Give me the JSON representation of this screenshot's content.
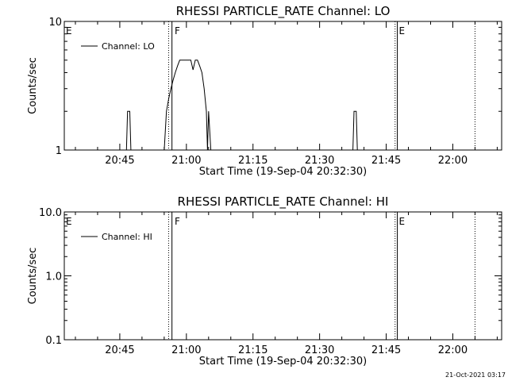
{
  "footer": {
    "timestamp": "21-Oct-2021 03:17"
  },
  "chart_data": [
    {
      "type": "line",
      "title": "RHESSI PARTICLE_RATE Channel: LO",
      "xlabel": "Start Time (19-Sep-04 20:32:30)",
      "ylabel": "Counts/sec",
      "yscale": "log",
      "ylim": [
        1,
        10
      ],
      "ytick_values": [
        1,
        10
      ],
      "ytick_labels": [
        "1",
        "10"
      ],
      "xlim": [
        "20:32:30",
        "22:11:00"
      ],
      "xtick_values": [
        "20:45",
        "21:00",
        "21:15",
        "21:30",
        "21:45",
        "22:00"
      ],
      "xtick_labels": [
        "20:45",
        "21:00",
        "21:15",
        "21:30",
        "21:45",
        "22:00"
      ],
      "legend": {
        "position": "top-left",
        "entries": [
          "Channel: LO"
        ]
      },
      "grid": false,
      "series": [
        {
          "name": "Channel: LO",
          "x": [
            "20:46:00",
            "20:46:30",
            "20:46:45",
            "20:47:15",
            "20:47:30",
            "20:48:00",
            "20:55:00",
            "20:55:30",
            "20:56:00",
            "20:56:30",
            "20:57:00",
            "20:57:30",
            "20:58:00",
            "20:58:30",
            "20:59:00",
            "20:59:30",
            "21:00:00",
            "21:00:30",
            "21:01:00",
            "21:01:30",
            "21:02:00",
            "21:02:30",
            "21:03:00",
            "21:03:30",
            "21:04:00",
            "21:04:30",
            "21:04:45",
            "21:05:00",
            "21:05:30",
            "21:06:00",
            "21:06:30",
            "21:07:00",
            "21:37:00",
            "21:37:30",
            "21:37:45",
            "21:38:15",
            "21:38:30",
            "21:39:00"
          ],
          "y": [
            1,
            1,
            2,
            2,
            1,
            1,
            1,
            2,
            2.5,
            3,
            3.5,
            4,
            4.5,
            5,
            5,
            5,
            5,
            5,
            5,
            4.2,
            5,
            5,
            4.5,
            4,
            3,
            2,
            1,
            2,
            1,
            1,
            1,
            1,
            1,
            1,
            2,
            2,
            1,
            1
          ]
        }
      ],
      "annotations": [
        {
          "text": "E",
          "x": "20:32:30"
        },
        {
          "text": "F",
          "x": "20:57:00"
        },
        {
          "text": "E",
          "x": "21:47:30"
        }
      ],
      "vertical_lines": {
        "dotted": [
          "20:56:00",
          "21:47:00",
          "22:05:00"
        ],
        "solid": [
          "20:56:45",
          "21:47:30"
        ]
      }
    },
    {
      "type": "line",
      "title": "RHESSI PARTICLE_RATE Channel: HI",
      "xlabel": "Start Time (19-Sep-04 20:32:30)",
      "ylabel": "Counts/sec",
      "yscale": "log",
      "ylim": [
        0.1,
        10
      ],
      "ytick_values": [
        0.1,
        1,
        10
      ],
      "ytick_labels": [
        "0.1",
        "1.0",
        "10.0"
      ],
      "xlim": [
        "20:32:30",
        "22:11:00"
      ],
      "xtick_values": [
        "20:45",
        "21:00",
        "21:15",
        "21:30",
        "21:45",
        "22:00"
      ],
      "xtick_labels": [
        "20:45",
        "21:00",
        "21:15",
        "21:30",
        "21:45",
        "22:00"
      ],
      "legend": {
        "position": "top-left",
        "entries": [
          "Channel: HI"
        ]
      },
      "grid": false,
      "series": [
        {
          "name": "Channel: HI",
          "x": [],
          "y": []
        }
      ],
      "annotations": [
        {
          "text": "E",
          "x": "20:32:30"
        },
        {
          "text": "F",
          "x": "20:57:00"
        },
        {
          "text": "E",
          "x": "21:47:30"
        }
      ],
      "vertical_lines": {
        "dotted": [
          "20:56:00",
          "21:47:00",
          "22:05:00"
        ],
        "solid": [
          "20:56:45",
          "21:47:30"
        ]
      }
    }
  ]
}
